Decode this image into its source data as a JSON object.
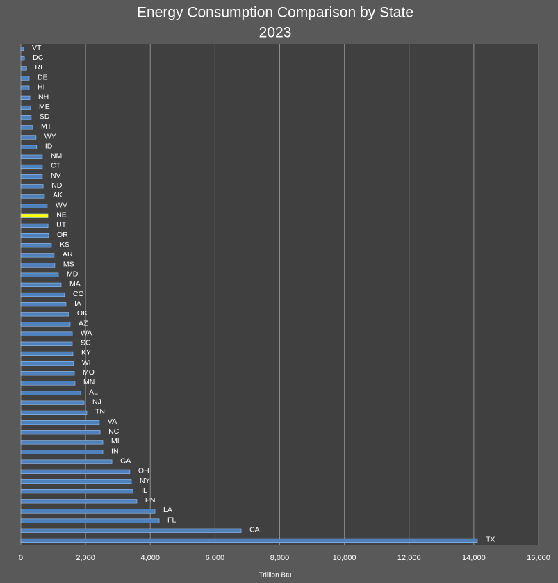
{
  "chart_data": {
    "type": "barh",
    "title": "Energy Consumption Comparison by State",
    "subtitle": "2023",
    "x_label": "Trillion Btu",
    "categories": [
      "VT",
      "DC",
      "RI",
      "DE",
      "HI",
      "NH",
      "ME",
      "SD",
      "MT",
      "WY",
      "ID",
      "NM",
      "CT",
      "NV",
      "ND",
      "AK",
      "WV",
      "NE",
      "UT",
      "OR",
      "KS",
      "AR",
      "MS",
      "MD",
      "MA",
      "CO",
      "IA",
      "OK",
      "AZ",
      "WA",
      "SC",
      "KY",
      "WI",
      "MO",
      "MN",
      "AL",
      "NJ",
      "TN",
      "VA",
      "NC",
      "MI",
      "IN",
      "GA",
      "OH",
      "NY",
      "IL",
      "PN",
      "LA",
      "FL",
      "CA",
      "TX"
    ],
    "values": [
      85,
      110,
      180,
      258,
      258,
      280,
      300,
      320,
      365,
      470,
      490,
      665,
      665,
      665,
      690,
      730,
      815,
      840,
      840,
      860,
      945,
      1030,
      1050,
      1160,
      1245,
      1350,
      1395,
      1480,
      1525,
      1590,
      1590,
      1610,
      1630,
      1655,
      1675,
      1850,
      1955,
      2040,
      2425,
      2450,
      2535,
      2535,
      2815,
      3370,
      3415,
      3460,
      3585,
      4145,
      4275,
      6810,
      14110
    ],
    "colors": [
      "#4f81bd",
      "#4f81bd",
      "#4f81bd",
      "#4f81bd",
      "#4f81bd",
      "#4f81bd",
      "#4f81bd",
      "#4f81bd",
      "#4f81bd",
      "#4f81bd",
      "#4f81bd",
      "#4f81bd",
      "#4f81bd",
      "#4f81bd",
      "#4f81bd",
      "#4f81bd",
      "#4f81bd",
      "#ffff00",
      "#4f81bd",
      "#4f81bd",
      "#4f81bd",
      "#4f81bd",
      "#4f81bd",
      "#4f81bd",
      "#4f81bd",
      "#4f81bd",
      "#4f81bd",
      "#4f81bd",
      "#4f81bd",
      "#4f81bd",
      "#4f81bd",
      "#4f81bd",
      "#4f81bd",
      "#4f81bd",
      "#4f81bd",
      "#4f81bd",
      "#4f81bd",
      "#4f81bd",
      "#4f81bd",
      "#4f81bd",
      "#4f81bd",
      "#4f81bd",
      "#4f81bd",
      "#4f81bd",
      "#4f81bd",
      "#4f81bd",
      "#4f81bd",
      "#4f81bd",
      "#4f81bd",
      "#4f81bd",
      "#4f81bd"
    ],
    "xlim": [
      0,
      16000
    ],
    "xticks": [
      0,
      {
        "value": 2000,
        "label": "2,000"
      },
      {
        "value": 4000,
        "label": "4,000"
      },
      {
        "value": 6000,
        "label": "6,000"
      },
      {
        "value": 8000,
        "label": "8,000"
      },
      {
        "value": 10000,
        "label": "10,000"
      },
      {
        "value": 12000,
        "label": "12,000"
      },
      {
        "value": 14000,
        "label": "14,000"
      },
      {
        "value": 16000,
        "label": "16,000"
      }
    ],
    "grid": true
  }
}
